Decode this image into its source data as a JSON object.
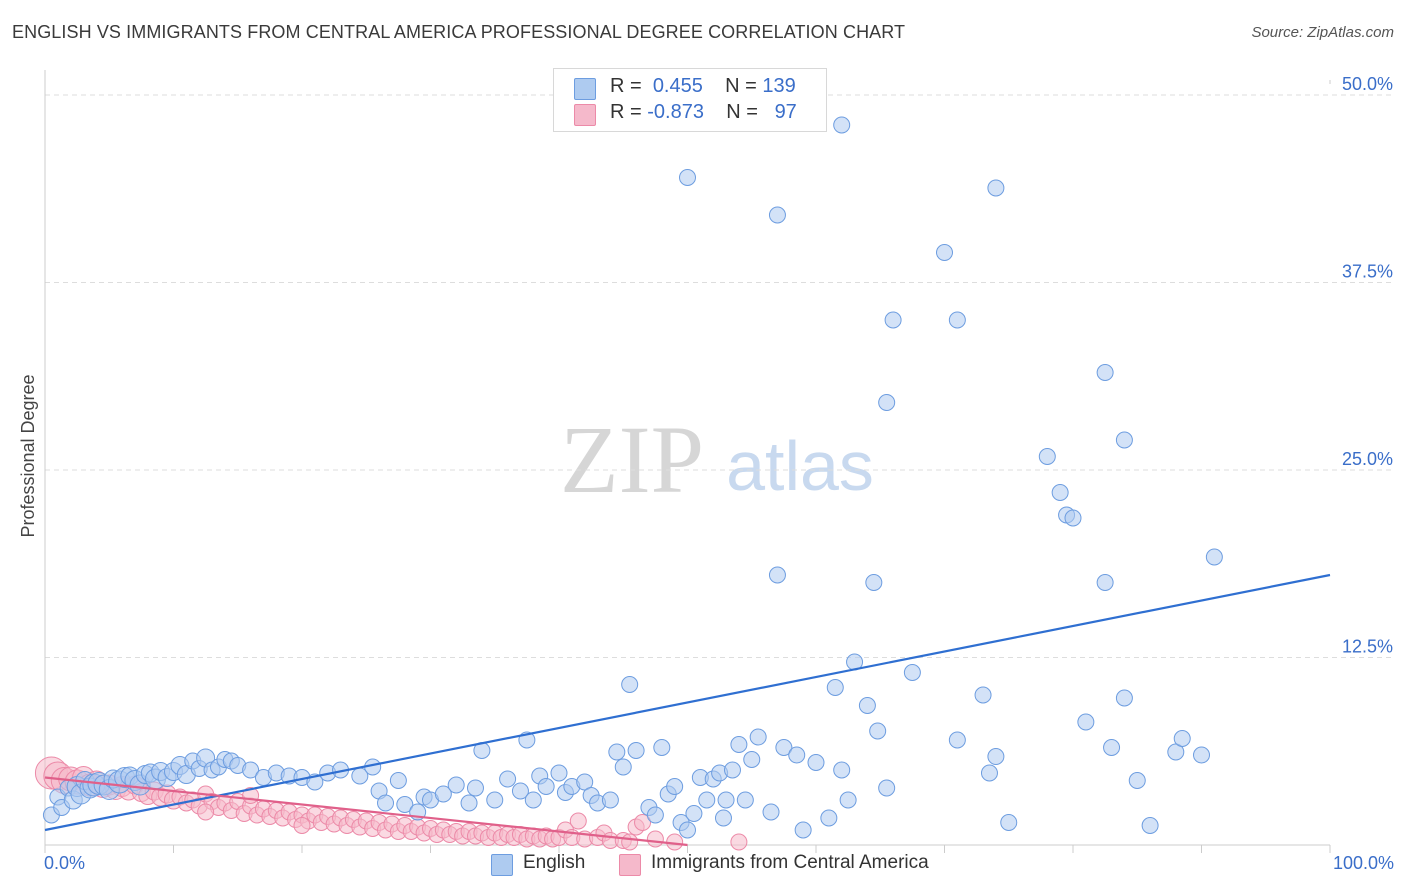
{
  "title": "ENGLISH VS IMMIGRANTS FROM CENTRAL AMERICA PROFESSIONAL DEGREE CORRELATION CHART",
  "source": "Source: ZipAtlas.com",
  "watermark": {
    "zip": "ZIP",
    "atlas": "atlas"
  },
  "legend": {
    "english": {
      "r_label": "R =",
      "r_value": "0.455",
      "n_label": "N =",
      "n_value": "139"
    },
    "immigrants": {
      "r_label": "R =",
      "r_value": "-0.873",
      "n_label": "N =",
      "n_value": "97"
    }
  },
  "chart_data": {
    "type": "scatter",
    "title": "ENGLISH VS IMMIGRANTS FROM CENTRAL AMERICA PROFESSIONAL DEGREE CORRELATION CHART",
    "xlabel": "",
    "ylabel": "Professional Degree",
    "xlim": [
      0,
      100
    ],
    "ylim": [
      0,
      51
    ],
    "x_tick_labels": {
      "left": "0.0%",
      "right": "100.0%"
    },
    "y_tick_labels": [
      "12.5%",
      "25.0%",
      "37.5%",
      "50.0%"
    ],
    "y_ticks": [
      12.5,
      25.0,
      37.5,
      50.0
    ],
    "grid": true,
    "legend_position": "top-center",
    "colors": {
      "english_fill": "#aecbf0",
      "english_stroke": "#6d9de0",
      "english_line": "#2f6fd1",
      "immigrants_fill": "#f5b9cb",
      "immigrants_stroke": "#ec8aa8",
      "immigrants_line": "#e0608a",
      "tick_label": "#3a6ec9",
      "grid": "#dddddd"
    },
    "series": [
      {
        "name": "English",
        "trend": {
          "x": [
            0,
            100
          ],
          "y": [
            1.0,
            18.0
          ]
        },
        "points": [
          [
            0.5,
            2.0,
            8
          ],
          [
            1.0,
            3.2,
            8
          ],
          [
            1.3,
            2.5,
            8
          ],
          [
            1.8,
            3.8,
            8
          ],
          [
            2.2,
            3.0,
            9
          ],
          [
            2.5,
            3.9,
            10
          ],
          [
            2.8,
            3.4,
            10
          ],
          [
            3.1,
            4.3,
            9
          ],
          [
            3.5,
            3.8,
            10
          ],
          [
            3.8,
            4.0,
            11
          ],
          [
            4.2,
            4.1,
            11
          ],
          [
            4.6,
            4.0,
            10
          ],
          [
            5.0,
            3.7,
            10
          ],
          [
            5.3,
            4.4,
            9
          ],
          [
            5.8,
            4.2,
            11
          ],
          [
            6.2,
            4.5,
            10
          ],
          [
            6.6,
            4.6,
            9
          ],
          [
            7.0,
            4.3,
            10
          ],
          [
            7.4,
            4.0,
            10
          ],
          [
            7.8,
            4.7,
            9
          ],
          [
            8.2,
            4.8,
            9
          ],
          [
            8.6,
            4.4,
            10
          ],
          [
            9.0,
            4.9,
            9
          ],
          [
            9.5,
            4.5,
            9
          ],
          [
            10.0,
            4.9,
            9
          ],
          [
            10.5,
            5.3,
            9
          ],
          [
            11.0,
            4.7,
            9
          ],
          [
            11.5,
            5.6,
            8
          ],
          [
            12.0,
            5.1,
            8
          ],
          [
            12.5,
            5.8,
            9
          ],
          [
            13.0,
            5.0,
            8
          ],
          [
            13.5,
            5.2,
            8
          ],
          [
            14.0,
            5.7,
            8
          ],
          [
            14.5,
            5.6,
            8
          ],
          [
            15.0,
            5.3,
            8
          ],
          [
            16.0,
            5.0,
            8
          ],
          [
            17.0,
            4.5,
            8
          ],
          [
            18.0,
            4.8,
            8
          ],
          [
            19.0,
            4.6,
            8
          ],
          [
            20.0,
            4.5,
            8
          ],
          [
            21.0,
            4.2,
            8
          ],
          [
            22.0,
            4.8,
            8
          ],
          [
            23.0,
            5.0,
            8
          ],
          [
            24.5,
            4.6,
            8
          ],
          [
            25.5,
            5.2,
            8
          ],
          [
            26.0,
            3.6,
            8
          ],
          [
            26.5,
            2.8,
            8
          ],
          [
            27.5,
            4.3,
            8
          ],
          [
            28.0,
            2.7,
            8
          ],
          [
            29.0,
            2.2,
            8
          ],
          [
            29.5,
            3.2,
            8
          ],
          [
            30.0,
            3.0,
            8
          ],
          [
            31.0,
            3.4,
            8
          ],
          [
            32.0,
            4.0,
            8
          ],
          [
            33.0,
            2.8,
            8
          ],
          [
            33.5,
            3.8,
            8
          ],
          [
            34.0,
            6.3,
            8
          ],
          [
            35.0,
            3.0,
            8
          ],
          [
            36.0,
            4.4,
            8
          ],
          [
            37.0,
            3.6,
            8
          ],
          [
            37.5,
            7.0,
            8
          ],
          [
            38.0,
            3.0,
            8
          ],
          [
            38.5,
            4.6,
            8
          ],
          [
            39.0,
            3.9,
            8
          ],
          [
            40.0,
            4.8,
            8
          ],
          [
            40.5,
            3.5,
            8
          ],
          [
            41.0,
            3.9,
            8
          ],
          [
            42.0,
            4.2,
            8
          ],
          [
            42.5,
            3.3,
            8
          ],
          [
            43.0,
            2.8,
            8
          ],
          [
            44.0,
            3.0,
            8
          ],
          [
            44.5,
            6.2,
            8
          ],
          [
            45.0,
            5.2,
            8
          ],
          [
            45.5,
            10.7,
            8
          ],
          [
            46.0,
            6.3,
            8
          ],
          [
            47.0,
            2.5,
            8
          ],
          [
            47.5,
            2.0,
            8
          ],
          [
            48.0,
            6.5,
            8
          ],
          [
            48.5,
            3.4,
            8
          ],
          [
            49.0,
            3.9,
            8
          ],
          [
            49.5,
            1.5,
            8
          ],
          [
            50.0,
            1.0,
            8
          ],
          [
            50.5,
            2.1,
            8
          ],
          [
            51.0,
            4.5,
            8
          ],
          [
            51.5,
            3.0,
            8
          ],
          [
            52.0,
            4.4,
            8
          ],
          [
            52.5,
            4.8,
            8
          ],
          [
            52.8,
            1.8,
            8
          ],
          [
            53.0,
            3.0,
            8
          ],
          [
            53.5,
            5.0,
            8
          ],
          [
            54.0,
            6.7,
            8
          ],
          [
            54.5,
            3.0,
            8
          ],
          [
            55.0,
            5.7,
            8
          ],
          [
            55.5,
            7.2,
            8
          ],
          [
            56.5,
            2.2,
            8
          ],
          [
            57.0,
            18.0,
            8
          ],
          [
            57.5,
            6.5,
            8
          ],
          [
            58.5,
            6.0,
            8
          ],
          [
            59.0,
            1.0,
            8
          ],
          [
            60.0,
            5.5,
            8
          ],
          [
            61.0,
            1.8,
            8
          ],
          [
            61.5,
            10.5,
            8
          ],
          [
            62.0,
            5.0,
            8
          ],
          [
            62.5,
            3.0,
            8
          ],
          [
            63.0,
            12.2,
            8
          ],
          [
            64.0,
            9.3,
            8
          ],
          [
            64.5,
            17.5,
            8
          ],
          [
            64.8,
            7.6,
            8
          ],
          [
            65.5,
            3.8,
            8
          ],
          [
            66.0,
            35.0,
            8
          ],
          [
            67.5,
            11.5,
            8
          ],
          [
            70.0,
            39.5,
            8
          ],
          [
            71.0,
            7.0,
            8
          ],
          [
            73.0,
            10.0,
            8
          ],
          [
            73.5,
            4.8,
            8
          ],
          [
            74.0,
            5.9,
            8
          ],
          [
            75.0,
            1.5,
            8
          ],
          [
            78.0,
            25.9,
            8
          ],
          [
            79.0,
            23.5,
            8
          ],
          [
            79.5,
            22.0,
            8
          ],
          [
            80.0,
            21.8,
            8
          ],
          [
            81.0,
            8.2,
            8
          ],
          [
            82.5,
            17.5,
            8
          ],
          [
            83.0,
            6.5,
            8
          ],
          [
            84.0,
            9.8,
            8
          ],
          [
            85.0,
            4.3,
            8
          ],
          [
            86.0,
            1.3,
            8
          ],
          [
            88.0,
            6.2,
            8
          ],
          [
            88.5,
            7.1,
            8
          ],
          [
            90.0,
            6.0,
            8
          ],
          [
            50.0,
            44.5,
            8
          ],
          [
            62.0,
            48.0,
            8
          ],
          [
            57.0,
            42.0,
            8
          ],
          [
            74.0,
            43.8,
            8
          ],
          [
            65.5,
            29.5,
            8
          ],
          [
            82.5,
            31.5,
            8
          ],
          [
            71.0,
            35.0,
            8
          ],
          [
            91.0,
            19.2,
            8
          ],
          [
            84.0,
            27.0,
            8
          ]
        ]
      },
      {
        "name": "Immigrants from Central America",
        "trend": {
          "x": [
            0,
            50
          ],
          "y": [
            4.5,
            0.0
          ]
        },
        "points": [
          [
            0.5,
            4.8,
            16
          ],
          [
            1.0,
            4.6,
            14
          ],
          [
            1.5,
            4.3,
            13
          ],
          [
            2.0,
            4.4,
            12
          ],
          [
            2.5,
            4.2,
            12
          ],
          [
            3.0,
            4.5,
            11
          ],
          [
            3.5,
            4.0,
            11
          ],
          [
            4.0,
            4.2,
            11
          ],
          [
            4.5,
            3.9,
            11
          ],
          [
            5.0,
            4.0,
            10
          ],
          [
            5.5,
            3.7,
            10
          ],
          [
            6.0,
            3.9,
            10
          ],
          [
            6.5,
            3.6,
            9
          ],
          [
            7.0,
            4.0,
            9
          ],
          [
            7.5,
            3.5,
            9
          ],
          [
            8.0,
            3.3,
            9
          ],
          [
            8.5,
            3.6,
            9
          ],
          [
            9.0,
            3.2,
            9
          ],
          [
            9.5,
            3.4,
            9
          ],
          [
            10.0,
            3.0,
            9
          ],
          [
            10.5,
            3.2,
            8
          ],
          [
            11.0,
            2.8,
            8
          ],
          [
            11.5,
            3.0,
            8
          ],
          [
            12.0,
            2.6,
            8
          ],
          [
            12.5,
            3.4,
            8
          ],
          [
            13.0,
            2.9,
            8
          ],
          [
            13.5,
            2.5,
            8
          ],
          [
            14.0,
            2.8,
            8
          ],
          [
            14.5,
            2.3,
            8
          ],
          [
            15.0,
            2.9,
            8
          ],
          [
            15.5,
            2.1,
            8
          ],
          [
            16.0,
            2.6,
            8
          ],
          [
            16.5,
            2.0,
            8
          ],
          [
            17.0,
            2.4,
            8
          ],
          [
            17.5,
            1.9,
            8
          ],
          [
            18.0,
            2.3,
            8
          ],
          [
            18.5,
            1.8,
            8
          ],
          [
            19.0,
            2.2,
            8
          ],
          [
            19.5,
            1.7,
            8
          ],
          [
            20.0,
            2.0,
            8
          ],
          [
            20.5,
            1.6,
            8
          ],
          [
            21.0,
            2.0,
            8
          ],
          [
            21.5,
            1.5,
            8
          ],
          [
            22.0,
            1.9,
            8
          ],
          [
            22.5,
            1.4,
            8
          ],
          [
            23.0,
            1.8,
            8
          ],
          [
            23.5,
            1.3,
            8
          ],
          [
            24.0,
            1.7,
            8
          ],
          [
            24.5,
            1.2,
            8
          ],
          [
            25.0,
            1.6,
            8
          ],
          [
            25.5,
            1.1,
            8
          ],
          [
            26.0,
            1.5,
            8
          ],
          [
            26.5,
            1.0,
            8
          ],
          [
            27.0,
            1.4,
            8
          ],
          [
            27.5,
            0.9,
            8
          ],
          [
            28.0,
            1.3,
            8
          ],
          [
            28.5,
            0.9,
            8
          ],
          [
            29.0,
            1.2,
            8
          ],
          [
            29.5,
            0.8,
            8
          ],
          [
            30.0,
            1.1,
            8
          ],
          [
            30.5,
            0.7,
            8
          ],
          [
            31.0,
            1.0,
            8
          ],
          [
            31.5,
            0.7,
            8
          ],
          [
            32.0,
            0.9,
            8
          ],
          [
            32.5,
            0.6,
            8
          ],
          [
            33.0,
            0.9,
            8
          ],
          [
            33.5,
            0.6,
            8
          ],
          [
            34.0,
            0.8,
            8
          ],
          [
            34.5,
            0.5,
            8
          ],
          [
            35.0,
            0.8,
            8
          ],
          [
            35.5,
            0.5,
            8
          ],
          [
            36.0,
            0.7,
            8
          ],
          [
            36.5,
            0.5,
            8
          ],
          [
            37.0,
            0.7,
            8
          ],
          [
            37.5,
            0.4,
            8
          ],
          [
            38.0,
            0.6,
            8
          ],
          [
            38.5,
            0.4,
            8
          ],
          [
            39.0,
            0.6,
            8
          ],
          [
            39.5,
            0.4,
            8
          ],
          [
            40.0,
            0.5,
            8
          ],
          [
            40.5,
            1.0,
            8
          ],
          [
            41.0,
            0.5,
            8
          ],
          [
            41.5,
            1.6,
            8
          ],
          [
            42.0,
            0.4,
            8
          ],
          [
            43.0,
            0.5,
            8
          ],
          [
            43.5,
            0.8,
            8
          ],
          [
            44.0,
            0.3,
            8
          ],
          [
            45.0,
            0.3,
            8
          ],
          [
            45.5,
            0.2,
            8
          ],
          [
            46.0,
            1.2,
            8
          ],
          [
            46.5,
            1.5,
            8
          ],
          [
            47.5,
            0.4,
            8
          ],
          [
            49.0,
            0.2,
            8
          ],
          [
            54.0,
            0.2,
            8
          ],
          [
            16.0,
            3.3,
            8
          ],
          [
            12.5,
            2.2,
            8
          ],
          [
            20.0,
            1.3,
            8
          ]
        ]
      }
    ]
  },
  "bottom_legend": {
    "english": "English",
    "immigrants": "Immigrants from Central America"
  }
}
